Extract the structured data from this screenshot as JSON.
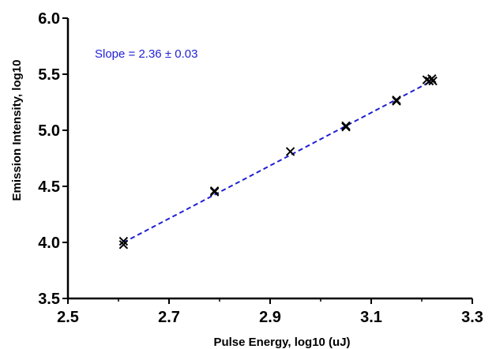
{
  "chart_data": {
    "type": "scatter",
    "xlabel": "Pulse Energy, log10 (uJ)",
    "ylabel": "Emission Intensity, log10",
    "xlim": [
      2.5,
      3.3
    ],
    "ylim": [
      3.5,
      6.0
    ],
    "x_ticks": [
      "2.5",
      "2.7",
      "2.9",
      "3.1",
      "3.3"
    ],
    "y_ticks": [
      "3.5",
      "4.0",
      "4.5",
      "5.0",
      "5.5",
      "6.0"
    ],
    "grid": false,
    "annotation": "Slope = 2.36 ± 0.03",
    "series": [
      {
        "marker": "x",
        "color": "#000000",
        "points": [
          [
            2.61,
            4.01
          ],
          [
            2.61,
            3.98
          ],
          [
            2.79,
            4.46
          ],
          [
            2.79,
            4.45
          ],
          [
            2.94,
            4.81
          ],
          [
            3.05,
            5.04
          ],
          [
            3.05,
            5.03
          ],
          [
            3.15,
            5.27
          ],
          [
            3.15,
            5.26
          ],
          [
            3.21,
            5.45
          ],
          [
            3.215,
            5.44
          ],
          [
            3.22,
            5.46
          ],
          [
            3.222,
            5.44
          ]
        ]
      }
    ],
    "fit_line": {
      "style": "dashed",
      "color": "#1f1fd6",
      "x": [
        2.61,
        3.222
      ],
      "y": [
        4.0,
        5.445
      ]
    }
  }
}
